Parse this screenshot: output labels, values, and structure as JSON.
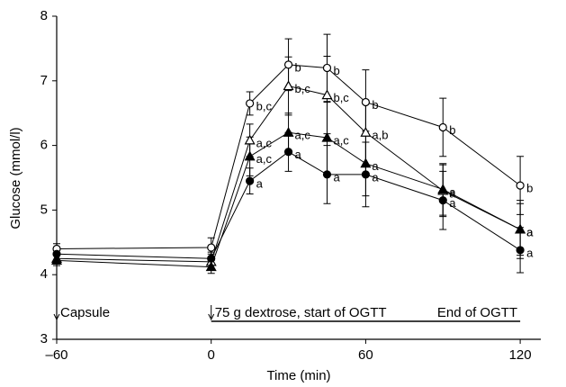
{
  "chart_data": {
    "type": "line",
    "x_label": "Time (min)",
    "y_label": "Glucose (mmol/l)",
    "x": [
      -60,
      0,
      15,
      30,
      45,
      60,
      90,
      120
    ],
    "xlim": [
      -60,
      128
    ],
    "ylim": [
      3,
      8
    ],
    "xticks": [
      {
        "value": -60,
        "label": "–60"
      },
      0,
      60,
      120
    ],
    "yticks": [
      3,
      4,
      5,
      6,
      7,
      8
    ],
    "series": [
      {
        "marker": "circle-open",
        "color": "#000000",
        "values": [
          4.4,
          4.42,
          6.65,
          7.25,
          7.2,
          6.67,
          6.28,
          5.38
        ],
        "errors": [
          0.08,
          0.15,
          0.18,
          0.4,
          0.52,
          0.5,
          0.45,
          0.45
        ],
        "point_labels": [
          null,
          null,
          "b,c",
          "b",
          "b",
          "b",
          "b",
          "b"
        ]
      },
      {
        "marker": "triangle-open",
        "color": "#000000",
        "values": [
          4.25,
          4.2,
          6.08,
          6.92,
          6.78,
          6.2,
          5.3,
          4.7
        ],
        "errors": [
          0.08,
          0.12,
          0.25,
          0.45,
          0.6,
          0.5,
          0.4,
          0.4
        ],
        "point_labels": [
          null,
          null,
          "a,c",
          "b,c",
          "b,c",
          "a,b",
          "a",
          "a"
        ]
      },
      {
        "marker": "triangle-filled",
        "color": "#000000",
        "values": [
          4.22,
          4.12,
          5.83,
          6.2,
          6.12,
          5.72,
          5.32,
          4.7
        ],
        "errors": [
          0.08,
          0.1,
          0.3,
          0.3,
          0.55,
          0.5,
          0.4,
          0.45
        ],
        "point_labels": [
          null,
          null,
          "a,c",
          "a,c",
          "a,c",
          "a",
          "a",
          "a"
        ]
      },
      {
        "marker": "circle-filled",
        "color": "#000000",
        "values": [
          4.32,
          4.25,
          5.45,
          5.9,
          5.55,
          5.55,
          5.15,
          4.38
        ],
        "errors": [
          0.1,
          0.1,
          0.2,
          0.3,
          0.45,
          0.5,
          0.45,
          0.35
        ],
        "point_labels": [
          null,
          null,
          "a",
          "a",
          "a",
          "a",
          "a",
          "a"
        ]
      }
    ],
    "annotations": [
      {
        "text": "Capsule",
        "x": -60
      },
      {
        "text": "75 g dextrose, start of OGTT",
        "x": 0
      },
      {
        "text": "End of OGTT",
        "x": 120
      }
    ]
  }
}
